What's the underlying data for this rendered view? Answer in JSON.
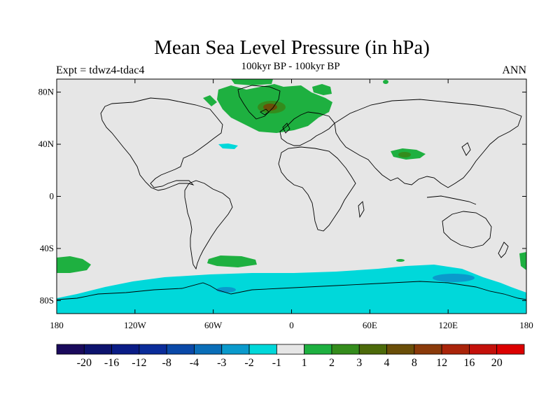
{
  "title": "Mean Sea Level Pressure (in hPa)",
  "subtitle": "100kyr BP - 100kyr BP",
  "expt_label": "Expt = tdwz4-tdac4",
  "season": "ANN",
  "map": {
    "lon_range": [
      -180,
      180
    ],
    "lat_range": [
      -90,
      90
    ],
    "background_color": "#e6e6e6",
    "coast_color": "#000000",
    "y_ticks": [
      {
        "lat": 80,
        "label": "80N"
      },
      {
        "lat": 40,
        "label": "40N"
      },
      {
        "lat": 0,
        "label": "0"
      },
      {
        "lat": -40,
        "label": "40S"
      },
      {
        "lat": -80,
        "label": "80S"
      }
    ],
    "x_ticks": [
      {
        "lon": -180,
        "label": "180"
      },
      {
        "lon": -120,
        "label": "120W"
      },
      {
        "lon": -60,
        "label": "60W"
      },
      {
        "lon": 0,
        "label": "0"
      },
      {
        "lon": 60,
        "label": "60E"
      },
      {
        "lon": 120,
        "label": "120E"
      },
      {
        "lon": 180,
        "label": "180"
      }
    ]
  },
  "colorbar": {
    "colors": [
      "#1a0a5c",
      "#0d136e",
      "#0a1c86",
      "#0a2c9a",
      "#0a49a8",
      "#0a6eb8",
      "#0a9acc",
      "#00d8da",
      "#e6e6e6",
      "#1eb040",
      "#348c1c",
      "#4c6a0a",
      "#6a4e08",
      "#8a3a0a",
      "#aa240a",
      "#c4100a",
      "#dc0000"
    ],
    "labels": [
      "-20",
      "-16",
      "-12",
      "-8",
      "-4",
      "-3",
      "-2",
      "-1",
      "1",
      "2",
      "3",
      "4",
      "8",
      "12",
      "16",
      "20"
    ]
  },
  "chart_data": {
    "type": "heatmap",
    "title": "Mean Sea Level Pressure (in hPa)",
    "subtitle": "100kyr BP - 100kyr BP",
    "x_range": [
      -180,
      180
    ],
    "y_range": [
      -90,
      90
    ],
    "levels": [
      -20,
      -16,
      -12,
      -8,
      -4,
      -3,
      -2,
      -1,
      1,
      2,
      3,
      4,
      8,
      12,
      16,
      20
    ],
    "regions": [
      {
        "name_desc": "North Atlantic / Greenland high",
        "value_bin": "2 to 3",
        "lon": [
          -45,
          30
        ],
        "lat": [
          55,
          90
        ]
      },
      {
        "name_desc": "Greenland core",
        "value_bin": "4 to 8",
        "lon": [
          -25,
          -10
        ],
        "lat": [
          68,
          74
        ]
      },
      {
        "name_desc": "Tibet high",
        "value_bin": "2 to 3",
        "lon": [
          80,
          100
        ],
        "lat": [
          31,
          37
        ]
      },
      {
        "name_desc": "Mid-Atlantic low",
        "value_bin": "-2 to -1",
        "lon": [
          -45,
          -30
        ],
        "lat": [
          38,
          41
        ]
      },
      {
        "name_desc": "South Pacific high",
        "value_bin": "1 to 2",
        "lon": [
          -180,
          -155
        ],
        "lat": [
          -57,
          -47
        ]
      },
      {
        "name_desc": "South Atlantic high",
        "value_bin": "1 to 2",
        "lon": [
          -60,
          -25
        ],
        "lat": [
          -57,
          -50
        ]
      },
      {
        "name_desc": "Southern Ocean low belt",
        "value_bin": "-2 to -1",
        "lon": [
          -180,
          180
        ],
        "lat": [
          -90,
          -60
        ]
      },
      {
        "name_desc": "Southern Ocean deeper low",
        "value_bin": "-3 to -2",
        "lon": [
          105,
          140
        ],
        "lat": [
          -67,
          -62
        ]
      }
    ]
  }
}
